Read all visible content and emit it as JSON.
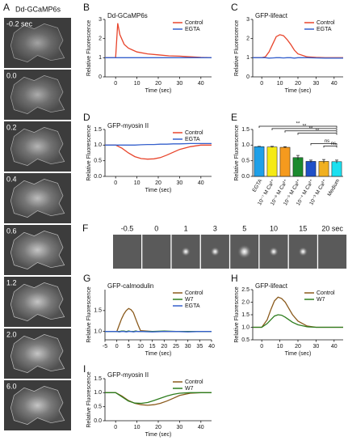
{
  "panels": [
    {
      "label": "A",
      "title": "Dd-GCaMP6s",
      "frames": [
        "-0.2 sec",
        "0.0",
        "0.2",
        "0.4",
        "0.6",
        "1.2",
        "2.0",
        "6.0"
      ]
    },
    {
      "label": "F",
      "frames": [
        "-0.5",
        "0",
        "1",
        "3",
        "5",
        "10",
        "15",
        "20 sec"
      ]
    }
  ],
  "chart_data": [
    {
      "panel": "B",
      "type": "line",
      "title": "Dd-GCaMP6s",
      "xlabel": "Time (sec)",
      "ylabel": "Relative Fluorescence",
      "x": [
        -5,
        0,
        1,
        2,
        4,
        6,
        8,
        10,
        15,
        20,
        25,
        30,
        35,
        40,
        45
      ],
      "series": [
        {
          "name": "Control",
          "color": "#e8452c",
          "values": [
            1,
            1,
            2.8,
            2.2,
            1.7,
            1.5,
            1.4,
            1.3,
            1.2,
            1.15,
            1.1,
            1.08,
            1.05,
            1.02,
            1
          ]
        },
        {
          "name": "EGTA",
          "color": "#3560cc",
          "values": [
            1,
            1,
            1,
            1,
            1,
            1,
            1,
            1,
            1,
            1,
            1,
            1,
            1,
            1,
            1
          ]
        }
      ],
      "xlim": [
        -5,
        45
      ],
      "xticks": [
        0,
        10,
        20,
        30,
        40
      ],
      "ylim": [
        0,
        3
      ],
      "yticks": [
        0,
        1,
        2,
        3
      ],
      "legend": "upper right"
    },
    {
      "panel": "C",
      "type": "line",
      "title": "GFP-lifeact",
      "xlabel": "Time (sec)",
      "ylabel": "Relative Fluorescence",
      "x": [
        -5,
        0,
        2,
        4,
        6,
        8,
        10,
        12,
        14,
        16,
        18,
        20,
        25,
        30,
        35,
        40,
        45
      ],
      "series": [
        {
          "name": "Control",
          "color": "#e8452c",
          "values": [
            1,
            1,
            1.05,
            1.3,
            1.7,
            2.1,
            2.2,
            2.15,
            1.95,
            1.7,
            1.4,
            1.2,
            1.05,
            1.02,
            1,
            1,
            1
          ]
        },
        {
          "name": "EGTA",
          "color": "#3560cc",
          "values": [
            1,
            1,
            1,
            0.98,
            0.99,
            1,
            1,
            0.99,
            1,
            1,
            0.98,
            1,
            1,
            0.99,
            0.98,
            0.98,
            0.98
          ]
        }
      ],
      "xlim": [
        -5,
        45
      ],
      "xticks": [
        0,
        10,
        20,
        30,
        40
      ],
      "ylim": [
        0,
        3
      ],
      "yticks": [
        0,
        1,
        2,
        3
      ],
      "legend": "upper right"
    },
    {
      "panel": "D",
      "type": "line",
      "title": "GFP-myosin II",
      "xlabel": "Time (sec)",
      "ylabel": "Relative Fluorescence",
      "x": [
        -5,
        0,
        3,
        6,
        9,
        12,
        15,
        18,
        21,
        24,
        27,
        30,
        35,
        40,
        45
      ],
      "series": [
        {
          "name": "Control",
          "color": "#e8452c",
          "values": [
            1,
            1,
            0.9,
            0.75,
            0.63,
            0.57,
            0.55,
            0.56,
            0.6,
            0.68,
            0.77,
            0.86,
            0.95,
            1,
            1
          ]
        },
        {
          "name": "EGTA",
          "color": "#3560cc",
          "values": [
            1,
            1,
            1,
            1,
            1,
            1.01,
            1.02,
            1.02,
            1.03,
            1.03,
            1.04,
            1.04,
            1.05,
            1.05,
            1.05
          ]
        }
      ],
      "xlim": [
        -5,
        45
      ],
      "xticks": [
        0,
        10,
        20,
        30,
        40
      ],
      "ylim": [
        0,
        1.5
      ],
      "yticks": [
        {
          "value": 0,
          "label": "0.0"
        },
        {
          "value": 0.5,
          "label": "0.5"
        },
        {
          "value": 1,
          "label": "1.0"
        },
        {
          "value": 1.5,
          "label": "1.5"
        }
      ],
      "legend": "upper right"
    },
    {
      "panel": "E",
      "type": "bar",
      "ylabel": "Relative Fluorescence",
      "categories": [
        "EGTA",
        "10⁻⁷ M Ca²⁺",
        "10⁻⁶ M Ca²⁺",
        "10⁻⁵ M Ca²⁺",
        "10⁻⁴ M Ca²⁺",
        "10⁻³ M Ca²⁺",
        "Medium"
      ],
      "values": [
        0.95,
        0.94,
        0.93,
        0.6,
        0.48,
        0.48,
        0.47
      ],
      "errors": [
        0.01,
        0.02,
        0.02,
        0.07,
        0.04,
        0.06,
        0.05
      ],
      "colors": [
        "#1fa0e8",
        "#f5ea14",
        "#f59a1e",
        "#1b8a2e",
        "#2050c8",
        "#f0b020",
        "#1ce0f0"
      ],
      "ylim": [
        0,
        1.5
      ],
      "yticks": [
        {
          "value": 0,
          "label": "0.0"
        },
        {
          "value": 0.5,
          "label": "0.5"
        },
        {
          "value": 1,
          "label": "1.0"
        },
        {
          "value": 1.5,
          "label": "1.5"
        }
      ],
      "annotations": [
        {
          "text": "**",
          "from": 0,
          "to": 6
        },
        {
          "text": "**",
          "from": 1,
          "to": 6
        },
        {
          "text": "**",
          "from": 2,
          "to": 6
        },
        {
          "text": "**",
          "from": 3,
          "to": 6
        },
        {
          "text": "ns",
          "from": 4,
          "to": 6
        },
        {
          "text": "ns",
          "from": 5,
          "to": 6
        }
      ]
    },
    {
      "panel": "G",
      "type": "line",
      "title": "GFP-calmodulin",
      "xlabel": "Time (sec)",
      "ylabel": "Relative Fluorescence",
      "x": [
        -5,
        -2,
        0,
        1,
        2,
        3,
        4,
        5,
        6,
        7,
        8,
        9,
        10,
        15,
        20,
        25,
        30,
        35,
        40
      ],
      "series": [
        {
          "name": "Control",
          "color": "#8a5a1c",
          "values": [
            1,
            1,
            1,
            1.15,
            1.3,
            1.42,
            1.5,
            1.55,
            1.52,
            1.45,
            1.3,
            1.15,
            1.02,
            1,
            1,
            1,
            1,
            1,
            1
          ]
        },
        {
          "name": "W7",
          "color": "#2e7d1e",
          "values": [
            1,
            1,
            1,
            1,
            1.01,
            1.01,
            1,
            1.01,
            1,
            1,
            1.01,
            1,
            1,
            1,
            1.01,
            1,
            1,
            1,
            1
          ]
        },
        {
          "name": "EGTA",
          "color": "#3560cc",
          "values": [
            1,
            1,
            1,
            0.99,
            1,
            1,
            0.99,
            1,
            1,
            0.99,
            1,
            1,
            1,
            0.99,
            1,
            1,
            0.99,
            1,
            1
          ]
        }
      ],
      "xlim": [
        -5,
        40
      ],
      "xticks": [
        -5,
        0,
        5,
        10,
        15,
        20,
        25,
        30,
        35,
        40
      ],
      "ylim": [
        0.8,
        2
      ],
      "yticks": [
        {
          "value": 1,
          "label": "1.0"
        },
        {
          "value": 1.5,
          "label": "1.5"
        }
      ],
      "legend": "upper right"
    },
    {
      "panel": "H",
      "type": "line",
      "title": "GFP-lifeact",
      "xlabel": "Time (sec)",
      "ylabel": "Relative Fluorescence",
      "x": [
        -5,
        0,
        3,
        5,
        7,
        9,
        11,
        13,
        15,
        17,
        20,
        25,
        30,
        35,
        40,
        45
      ],
      "series": [
        {
          "name": "Control",
          "color": "#8a5a1c",
          "values": [
            1,
            1,
            1.3,
            1.7,
            2.05,
            2.2,
            2.15,
            2,
            1.75,
            1.5,
            1.25,
            1.05,
            1,
            1,
            1,
            1
          ]
        },
        {
          "name": "W7",
          "color": "#2e7d1e",
          "values": [
            1,
            1,
            1.15,
            1.3,
            1.45,
            1.5,
            1.48,
            1.4,
            1.3,
            1.2,
            1.1,
            1.02,
            1,
            1,
            1,
            1
          ]
        }
      ],
      "xlim": [
        -5,
        45
      ],
      "xticks": [
        0,
        10,
        20,
        30,
        40
      ],
      "ylim": [
        0.5,
        2.5
      ],
      "yticks": [
        {
          "value": 0.5,
          "label": "0.5"
        },
        {
          "value": 1,
          "label": "1.0"
        },
        {
          "value": 1.5,
          "label": "1.5"
        },
        {
          "value": 2,
          "label": "2.0"
        },
        {
          "value": 2.5,
          "label": "2.5"
        }
      ],
      "legend": "upper right"
    },
    {
      "panel": "I",
      "type": "line",
      "title": "GFP-myosin II",
      "xlabel": "Time (sec)",
      "ylabel": "Relative Fluorescence",
      "x": [
        -5,
        0,
        3,
        6,
        9,
        12,
        15,
        18,
        21,
        24,
        27,
        30,
        35,
        40,
        45
      ],
      "series": [
        {
          "name": "Control",
          "color": "#8a5a1c",
          "values": [
            1,
            1,
            0.88,
            0.72,
            0.62,
            0.57,
            0.55,
            0.57,
            0.62,
            0.7,
            0.8,
            0.9,
            0.98,
            1,
            1
          ]
        },
        {
          "name": "W7",
          "color": "#2e7d1e",
          "values": [
            1,
            1,
            0.85,
            0.7,
            0.63,
            0.62,
            0.65,
            0.72,
            0.8,
            0.88,
            0.94,
            0.98,
            1,
            1,
            1
          ]
        }
      ],
      "xlim": [
        -5,
        45
      ],
      "xticks": [
        0,
        10,
        20,
        30,
        40
      ],
      "ylim": [
        0,
        1.5
      ],
      "yticks": [
        {
          "value": 0,
          "label": "0.0"
        },
        {
          "value": 0.5,
          "label": "0.5"
        },
        {
          "value": 1,
          "label": "1.0"
        },
        {
          "value": 1.5,
          "label": "1.5"
        }
      ],
      "legend": "upper right"
    }
  ]
}
